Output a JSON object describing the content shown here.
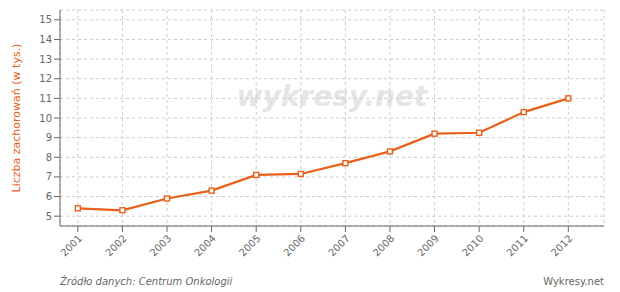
{
  "chart_data": {
    "type": "line",
    "x": [
      2001,
      2002,
      2003,
      2004,
      2005,
      2006,
      2007,
      2008,
      2009,
      2010,
      2011,
      2012
    ],
    "values": [
      5.4,
      5.3,
      5.9,
      6.3,
      7.1,
      7.15,
      7.7,
      8.3,
      9.2,
      9.25,
      10.3,
      11.0
    ],
    "color": "#e8601a",
    "marker": "square",
    "ylabel": "Liczba zachorowań (w tys.)",
    "xlim": [
      2000.6,
      2012.8
    ],
    "xticks": [
      2001,
      2002,
      2003,
      2004,
      2005,
      2006,
      2007,
      2008,
      2009,
      2010,
      2011,
      2012
    ],
    "ylim": [
      4.5,
      15.5
    ],
    "yticks": [
      5,
      6,
      7,
      8,
      9,
      10,
      11,
      12,
      13,
      14,
      15
    ],
    "grid": true,
    "annotations": [
      "wykresy.net",
      "Źródło danych:  Centrum Onkologii",
      "Wykresy.net"
    ]
  }
}
